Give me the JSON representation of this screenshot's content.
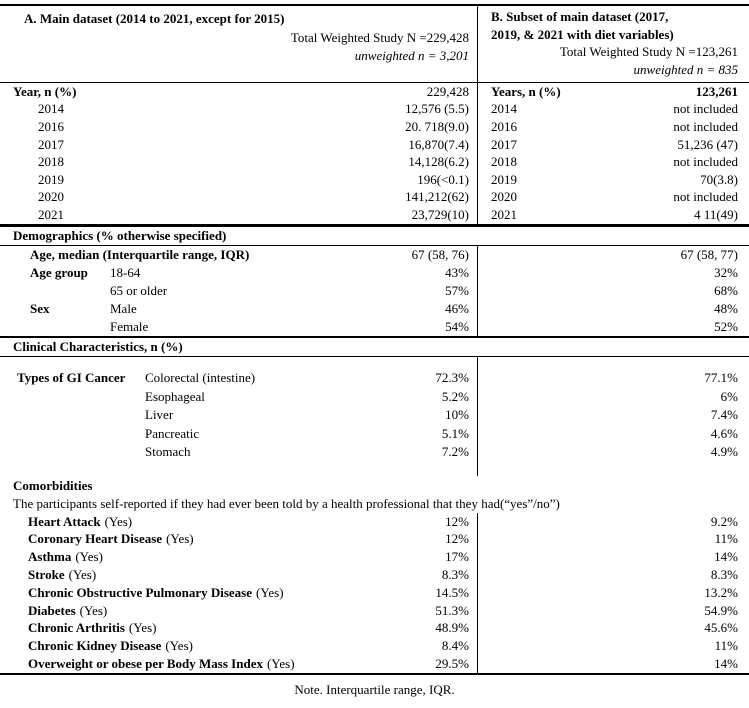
{
  "colors": {
    "text": "#000000",
    "lines": "#000000",
    "background": "#ffffff"
  },
  "panel_a": {
    "title": "A. Main dataset (2014 to 2021, except for 2015)",
    "weighted_n": "Total Weighted Study N =229,428",
    "unweighted_n": "unweighted n = 3,201",
    "year_header_label": "Year, n (%)",
    "year_header_value": "229,428",
    "years": [
      {
        "label": "2014",
        "value": "12,576 (5.5)"
      },
      {
        "label": "2016",
        "value": "20. 718(9.0)"
      },
      {
        "label": "2017",
        "value": "16,870(7.4)"
      },
      {
        "label": "2018",
        "value": "14,128(6.2)"
      },
      {
        "label": "2019",
        "value": "196(<0.1)"
      },
      {
        "label": "2020",
        "value": "141,212(62)"
      },
      {
        "label": "2021",
        "value": "23,729(10)"
      }
    ]
  },
  "panel_b": {
    "title_line1": "B. Subset of main dataset (2017,",
    "title_line2": "2019, & 2021 with diet variables)",
    "weighted_n": "Total Weighted Study N =123,261",
    "unweighted_n": "unweighted n = 835",
    "year_header_label": "Years, n (%)",
    "year_header_value": "123,261",
    "years": [
      {
        "label": "2014",
        "value": "not included"
      },
      {
        "label": "2016",
        "value": "not included"
      },
      {
        "label": "2017",
        "value": "51,236 (47)"
      },
      {
        "label": "2018",
        "value": "not included"
      },
      {
        "label": "2019",
        "value": "70(3.8)"
      },
      {
        "label": "2020",
        "value": "not included"
      },
      {
        "label": "2021",
        "value": "4 11(49)"
      }
    ]
  },
  "demographics": {
    "section_title": "Demographics (% otherwise specified)",
    "rows": [
      {
        "label": "Age, median (Interquartile range, IQR)",
        "sub": "",
        "a": "67 (58, 76)",
        "b": "67 (58, 77)"
      },
      {
        "label": "Age group",
        "sub": "18-64",
        "a": "43%",
        "b": "32%"
      },
      {
        "label": "",
        "sub": "65 or older",
        "a": "57%",
        "b": "68%"
      },
      {
        "label": "Sex",
        "sub": "Male",
        "a": "46%",
        "b": "48%"
      },
      {
        "label": "",
        "sub": "Female",
        "a": "54%",
        "b": "52%"
      }
    ]
  },
  "clinical": {
    "section_title": "Clinical Characteristics, n (%)",
    "gi_label": "Types of GI Cancer",
    "gi_rows": [
      {
        "sub": "Colorectal (intestine)",
        "a": "72.3%",
        "b": "77.1%"
      },
      {
        "sub": "Esophageal",
        "a": "5.2%",
        "b": "6%"
      },
      {
        "sub": "Liver",
        "a": "10%",
        "b": "7.4%"
      },
      {
        "sub": "Pancreatic",
        "a": "5.1%",
        "b": "4.6%"
      },
      {
        "sub": "Stomach",
        "a": "7.2%",
        "b": "4.9%"
      }
    ]
  },
  "comorbidities": {
    "title": "Comorbidities",
    "description": "The participants self-reported if they had ever been told by a health professional that they had(“yes”/no”)",
    "yes_label": "(Yes)",
    "rows": [
      {
        "name": "Heart Attack",
        "a": "12%",
        "b": "9.2%"
      },
      {
        "name": "Coronary Heart Disease",
        "a": "12%",
        "b": "11%"
      },
      {
        "name": "Asthma",
        "a": "17%",
        "b": "14%"
      },
      {
        "name": "Stroke",
        "a": "8.3%",
        "b": "8.3%"
      },
      {
        "name": "Chronic Obstructive Pulmonary Disease",
        "a": "14.5%",
        "b": "13.2%"
      },
      {
        "name": "Diabetes",
        "a": "51.3%",
        "b": "54.9%"
      },
      {
        "name": "Chronic Arthritis",
        "a": "48.9%",
        "b": "45.6%"
      },
      {
        "name": "Chronic Kidney Disease",
        "a": "8.4%",
        "b": "11%"
      },
      {
        "name": "Overweight or obese per Body Mass Index",
        "a": "29.5%",
        "b": "14%"
      }
    ]
  },
  "footnote": "Note. Interquartile range, IQR."
}
